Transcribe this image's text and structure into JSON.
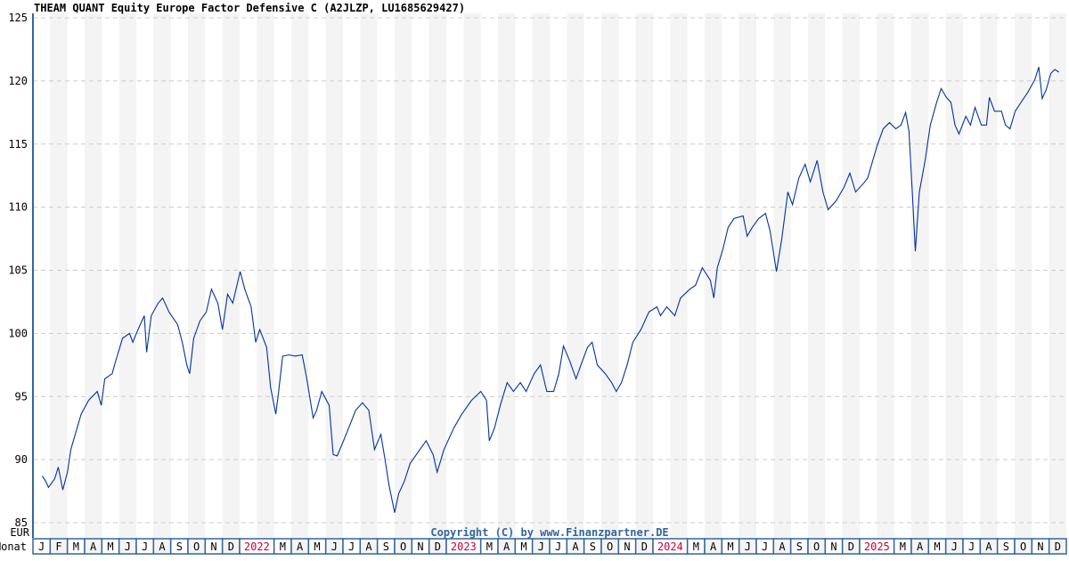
{
  "chart_data": {
    "type": "line",
    "title": "THEAM QUANT Equity Europe Factor Defensive C (A2JLZP, LU1685629427)",
    "ylabel": "EUR",
    "xlabel": "Monat",
    "ylim": [
      85,
      125
    ],
    "yticks": [
      85,
      90,
      95,
      100,
      105,
      110,
      115,
      120,
      125
    ],
    "xlim": [
      "2021-01-01",
      "2025-12-31"
    ],
    "grid": true,
    "line_color": "#0033a0",
    "year_label_color": "#cc0033",
    "stripe_color": "#f4f4f4",
    "frame_color": "#336699",
    "copyright": "Copyright (C) by www.Finanzpartner.DE",
    "month_labels": [
      {
        "label": "J"
      },
      {
        "label": "F"
      },
      {
        "label": "M"
      },
      {
        "label": "A"
      },
      {
        "label": "M"
      },
      {
        "label": "J"
      },
      {
        "label": "J"
      },
      {
        "label": "A"
      },
      {
        "label": "S"
      },
      {
        "label": "O"
      },
      {
        "label": "N"
      },
      {
        "label": "D"
      },
      {
        "label": "2022",
        "span": 2,
        "year": true
      },
      {
        "label": "M"
      },
      {
        "label": "A"
      },
      {
        "label": "M"
      },
      {
        "label": "J"
      },
      {
        "label": "J"
      },
      {
        "label": "A"
      },
      {
        "label": "S"
      },
      {
        "label": "O"
      },
      {
        "label": "N"
      },
      {
        "label": "D"
      },
      {
        "label": "2023",
        "span": 2,
        "year": true
      },
      {
        "label": "M"
      },
      {
        "label": "A"
      },
      {
        "label": "M"
      },
      {
        "label": "J"
      },
      {
        "label": "J"
      },
      {
        "label": "A"
      },
      {
        "label": "S"
      },
      {
        "label": "O"
      },
      {
        "label": "N"
      },
      {
        "label": "D"
      },
      {
        "label": "2024",
        "span": 2,
        "year": true
      },
      {
        "label": "M"
      },
      {
        "label": "A"
      },
      {
        "label": "M"
      },
      {
        "label": "J"
      },
      {
        "label": "J"
      },
      {
        "label": "A"
      },
      {
        "label": "S"
      },
      {
        "label": "O"
      },
      {
        "label": "N"
      },
      {
        "label": "D"
      },
      {
        "label": "2025",
        "span": 2,
        "year": true
      },
      {
        "label": "M"
      },
      {
        "label": "A"
      },
      {
        "label": "M"
      },
      {
        "label": "J"
      },
      {
        "label": "J"
      },
      {
        "label": "A"
      },
      {
        "label": "S"
      },
      {
        "label": "O"
      },
      {
        "label": "N"
      },
      {
        "label": "D"
      }
    ],
    "series": [
      {
        "points": [
          [
            "2021-01-17",
            88.7
          ],
          [
            "2021-01-23",
            88.3
          ],
          [
            "2021-01-28",
            87.8
          ],
          [
            "2021-02-09",
            88.5
          ],
          [
            "2021-02-15",
            89.4
          ],
          [
            "2021-02-23",
            87.6
          ],
          [
            "2021-03-01",
            89.0
          ],
          [
            "2021-03-07",
            90.8
          ],
          [
            "2021-03-16",
            92.2
          ],
          [
            "2021-03-25",
            93.6
          ],
          [
            "2021-04-08",
            94.7
          ],
          [
            "2021-04-23",
            95.4
          ],
          [
            "2021-04-30",
            94.3
          ],
          [
            "2021-05-06",
            96.4
          ],
          [
            "2021-05-19",
            96.8
          ],
          [
            "2021-05-25",
            97.8
          ],
          [
            "2021-06-07",
            99.6
          ],
          [
            "2021-06-19",
            100.0
          ],
          [
            "2021-06-25",
            99.3
          ],
          [
            "2021-07-04",
            100.3
          ],
          [
            "2021-07-15",
            101.4
          ],
          [
            "2021-07-19",
            98.5
          ],
          [
            "2021-07-27",
            101.4
          ],
          [
            "2021-08-09",
            102.4
          ],
          [
            "2021-08-17",
            102.8
          ],
          [
            "2021-08-28",
            101.7
          ],
          [
            "2021-09-13",
            100.7
          ],
          [
            "2021-09-21",
            99.3
          ],
          [
            "2021-09-29",
            97.5
          ],
          [
            "2021-10-04",
            96.8
          ],
          [
            "2021-10-11",
            99.6
          ],
          [
            "2021-10-22",
            101.0
          ],
          [
            "2021-11-03",
            101.7
          ],
          [
            "2021-11-12",
            103.5
          ],
          [
            "2021-11-23",
            102.4
          ],
          [
            "2021-12-01",
            100.3
          ],
          [
            "2021-12-10",
            103.1
          ],
          [
            "2021-12-19",
            102.4
          ],
          [
            "2022-01-02",
            104.9
          ],
          [
            "2022-01-10",
            103.5
          ],
          [
            "2022-01-21",
            102.1
          ],
          [
            "2022-01-29",
            99.3
          ],
          [
            "2022-02-06",
            100.3
          ],
          [
            "2022-02-18",
            98.9
          ],
          [
            "2022-02-25",
            95.7
          ],
          [
            "2022-03-04",
            93.6
          ],
          [
            "2022-03-09",
            95.4
          ],
          [
            "2022-03-16",
            98.2
          ],
          [
            "2022-03-27",
            98.3
          ],
          [
            "2022-04-08",
            98.2
          ],
          [
            "2022-04-20",
            98.3
          ],
          [
            "2022-04-28",
            96.4
          ],
          [
            "2022-05-09",
            93.3
          ],
          [
            "2022-05-15",
            93.9
          ],
          [
            "2022-05-24",
            95.4
          ],
          [
            "2022-06-07",
            94.3
          ],
          [
            "2022-06-14",
            90.4
          ],
          [
            "2022-06-21",
            90.3
          ],
          [
            "2022-07-02",
            91.5
          ],
          [
            "2022-07-11",
            92.5
          ],
          [
            "2022-07-23",
            93.9
          ],
          [
            "2022-08-05",
            94.5
          ],
          [
            "2022-08-16",
            93.9
          ],
          [
            "2022-08-26",
            90.8
          ],
          [
            "2022-09-07",
            92.0
          ],
          [
            "2022-09-14",
            90.1
          ],
          [
            "2022-09-21",
            88.0
          ],
          [
            "2022-10-01",
            85.8
          ],
          [
            "2022-10-08",
            87.3
          ],
          [
            "2022-10-18",
            88.3
          ],
          [
            "2022-10-28",
            89.7
          ],
          [
            "2022-11-12",
            90.6
          ],
          [
            "2022-11-26",
            91.5
          ],
          [
            "2022-12-08",
            90.4
          ],
          [
            "2022-12-15",
            89.0
          ],
          [
            "2022-12-27",
            90.8
          ],
          [
            "2023-01-14",
            92.5
          ],
          [
            "2023-01-28",
            93.6
          ],
          [
            "2023-02-15",
            94.7
          ],
          [
            "2023-03-01",
            95.4
          ],
          [
            "2023-03-11",
            94.7
          ],
          [
            "2023-03-16",
            91.5
          ],
          [
            "2023-03-25",
            92.5
          ],
          [
            "2023-04-05",
            94.3
          ],
          [
            "2023-04-17",
            96.1
          ],
          [
            "2023-04-28",
            95.4
          ],
          [
            "2023-05-10",
            96.1
          ],
          [
            "2023-05-20",
            95.4
          ],
          [
            "2023-06-04",
            96.8
          ],
          [
            "2023-06-15",
            97.5
          ],
          [
            "2023-06-26",
            95.4
          ],
          [
            "2023-07-08",
            95.4
          ],
          [
            "2023-07-17",
            96.8
          ],
          [
            "2023-07-25",
            99.0
          ],
          [
            "2023-08-06",
            97.8
          ],
          [
            "2023-08-17",
            96.4
          ],
          [
            "2023-08-28",
            97.8
          ],
          [
            "2023-09-07",
            98.9
          ],
          [
            "2023-09-15",
            99.3
          ],
          [
            "2023-09-24",
            97.5
          ],
          [
            "2023-10-08",
            96.8
          ],
          [
            "2023-10-19",
            96.1
          ],
          [
            "2023-10-27",
            95.4
          ],
          [
            "2023-11-06",
            96.1
          ],
          [
            "2023-11-16",
            97.5
          ],
          [
            "2023-11-26",
            99.3
          ],
          [
            "2023-12-10",
            100.3
          ],
          [
            "2023-12-24",
            101.7
          ],
          [
            "2024-01-08",
            102.1
          ],
          [
            "2024-01-14",
            101.4
          ],
          [
            "2024-01-25",
            102.1
          ],
          [
            "2024-02-09",
            101.4
          ],
          [
            "2024-02-19",
            102.8
          ],
          [
            "2024-03-05",
            103.5
          ],
          [
            "2024-03-15",
            103.8
          ],
          [
            "2024-03-27",
            105.2
          ],
          [
            "2024-04-11",
            104.2
          ],
          [
            "2024-04-17",
            102.8
          ],
          [
            "2024-04-23",
            105.2
          ],
          [
            "2024-05-03",
            106.7
          ],
          [
            "2024-05-12",
            108.4
          ],
          [
            "2024-05-22",
            109.1
          ],
          [
            "2024-06-08",
            109.3
          ],
          [
            "2024-06-15",
            107.7
          ],
          [
            "2024-06-24",
            108.4
          ],
          [
            "2024-07-05",
            109.1
          ],
          [
            "2024-07-17",
            109.5
          ],
          [
            "2024-07-25",
            108.1
          ],
          [
            "2024-08-06",
            104.9
          ],
          [
            "2024-08-15",
            107.4
          ],
          [
            "2024-08-26",
            111.2
          ],
          [
            "2024-09-04",
            110.2
          ],
          [
            "2024-09-15",
            112.3
          ],
          [
            "2024-09-26",
            113.4
          ],
          [
            "2024-10-05",
            112.0
          ],
          [
            "2024-10-17",
            113.7
          ],
          [
            "2024-10-27",
            111.2
          ],
          [
            "2024-11-06",
            109.8
          ],
          [
            "2024-11-20",
            110.5
          ],
          [
            "2024-12-04",
            111.6
          ],
          [
            "2024-12-14",
            112.7
          ],
          [
            "2024-12-24",
            111.2
          ],
          [
            "2025-01-08",
            111.9
          ],
          [
            "2025-01-15",
            112.3
          ],
          [
            "2025-02-01",
            114.8
          ],
          [
            "2025-02-12",
            116.2
          ],
          [
            "2025-02-23",
            116.7
          ],
          [
            "2025-03-04",
            116.2
          ],
          [
            "2025-03-13",
            116.5
          ],
          [
            "2025-03-21",
            117.5
          ],
          [
            "2025-03-27",
            116.0
          ],
          [
            "2025-04-03",
            110.9
          ],
          [
            "2025-04-08",
            106.5
          ],
          [
            "2025-04-15",
            111.2
          ],
          [
            "2025-04-25",
            113.7
          ],
          [
            "2025-05-04",
            116.5
          ],
          [
            "2025-05-15",
            118.3
          ],
          [
            "2025-05-23",
            119.4
          ],
          [
            "2025-06-02",
            118.7
          ],
          [
            "2025-06-10",
            118.3
          ],
          [
            "2025-06-17",
            116.5
          ],
          [
            "2025-06-24",
            115.8
          ],
          [
            "2025-07-06",
            117.2
          ],
          [
            "2025-07-14",
            116.5
          ],
          [
            "2025-07-22",
            117.9
          ],
          [
            "2025-08-03",
            116.5
          ],
          [
            "2025-08-12",
            116.5
          ],
          [
            "2025-08-17",
            118.7
          ],
          [
            "2025-08-26",
            117.6
          ],
          [
            "2025-09-08",
            117.6
          ],
          [
            "2025-09-15",
            116.5
          ],
          [
            "2025-09-23",
            116.2
          ],
          [
            "2025-10-02",
            117.6
          ],
          [
            "2025-10-12",
            118.3
          ],
          [
            "2025-10-24",
            119.1
          ],
          [
            "2025-11-06",
            120.1
          ],
          [
            "2025-11-13",
            121.1
          ],
          [
            "2025-11-19",
            118.6
          ],
          [
            "2025-11-26",
            119.3
          ],
          [
            "2025-12-04",
            120.6
          ],
          [
            "2025-12-11",
            120.9
          ],
          [
            "2025-12-18",
            120.7
          ]
        ]
      }
    ]
  }
}
